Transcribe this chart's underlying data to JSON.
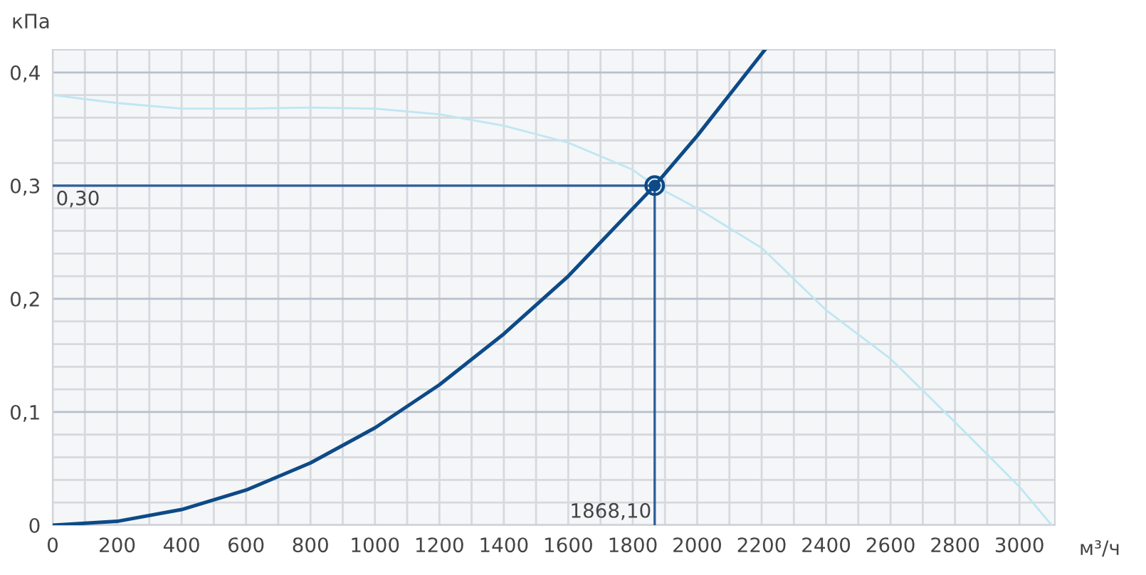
{
  "chart_data": {
    "type": "line",
    "xlabel": "м³/ч",
    "ylabel": "кПа",
    "xlim": [
      0,
      3110
    ],
    "ylim": [
      0,
      0.42
    ],
    "xticks": [
      0,
      {
        "value": 100,
        "label": null
      },
      200,
      {
        "value": 300,
        "label": null
      },
      400,
      {
        "value": 500,
        "label": null
      },
      600,
      {
        "value": 700,
        "label": null
      },
      800,
      {
        "value": 900,
        "label": null
      },
      1000,
      {
        "value": 1100,
        "label": null
      },
      1200,
      {
        "value": 1300,
        "label": null
      },
      1400,
      {
        "value": 1500,
        "label": null
      },
      1600,
      {
        "value": 1700,
        "label": null
      },
      1800,
      {
        "value": 1900,
        "label": null
      },
      2000,
      {
        "value": 2100,
        "label": null
      },
      2200,
      {
        "value": 2300,
        "label": null
      },
      2400,
      {
        "value": 2500,
        "label": null
      },
      2600,
      {
        "value": 2700,
        "label": null
      },
      2800,
      {
        "value": 2900,
        "label": null
      },
      3000
    ],
    "yticks": [
      0,
      {
        "value": 0.02,
        "label": null
      },
      {
        "value": 0.04,
        "label": null
      },
      {
        "value": 0.06,
        "label": null
      },
      {
        "value": 0.08,
        "label": null
      },
      {
        "value": 0.1,
        "label": "0,1"
      },
      {
        "value": 0.12,
        "label": null
      },
      {
        "value": 0.14,
        "label": null
      },
      {
        "value": 0.16,
        "label": null
      },
      {
        "value": 0.18,
        "label": null
      },
      {
        "value": 0.2,
        "label": "0,2"
      },
      {
        "value": 0.22,
        "label": null
      },
      {
        "value": 0.24,
        "label": null
      },
      {
        "value": 0.26,
        "label": null
      },
      {
        "value": 0.28,
        "label": null
      },
      {
        "value": 0.3,
        "label": "0,3"
      },
      {
        "value": 0.32,
        "label": null
      },
      {
        "value": 0.34,
        "label": null
      },
      {
        "value": 0.36,
        "label": null
      },
      {
        "value": 0.38,
        "label": null
      },
      {
        "value": 0.4,
        "label": "0,4"
      }
    ],
    "grid": true,
    "series": [
      {
        "color": "#bfe6f2",
        "x": [
          0,
          200,
          400,
          600,
          800,
          1000,
          1200,
          1400,
          1600,
          1800,
          1868.1,
          2000,
          2200,
          2400,
          2600,
          2800,
          3000,
          3100
        ],
        "values": [
          0.38,
          0.373,
          0.368,
          0.368,
          0.369,
          0.368,
          0.363,
          0.353,
          0.338,
          0.314,
          0.3,
          0.28,
          0.245,
          0.19,
          0.147,
          0.091,
          0.034,
          0.0
        ]
      },
      {
        "color": "#0d4a87",
        "x": [
          0,
          200,
          400,
          600,
          800,
          1000,
          1200,
          1400,
          1600,
          1868.1,
          2000,
          2210
        ],
        "values": [
          0.0,
          0.0034,
          0.0138,
          0.031,
          0.055,
          0.086,
          0.124,
          0.169,
          0.22,
          0.3,
          0.344,
          0.42
        ]
      },
      {
        "type": "scatter",
        "marker": "circle",
        "color": "#0d4a87",
        "x": [
          1868.1
        ],
        "values": [
          0.3
        ]
      }
    ],
    "ref_lines": [
      {
        "axis": "y",
        "value": 0.3,
        "label": "0,30",
        "color": "#2f5f9a"
      },
      {
        "axis": "x",
        "value": 1868.1,
        "label": "1868,10",
        "color": "#2f5f9a"
      }
    ]
  }
}
